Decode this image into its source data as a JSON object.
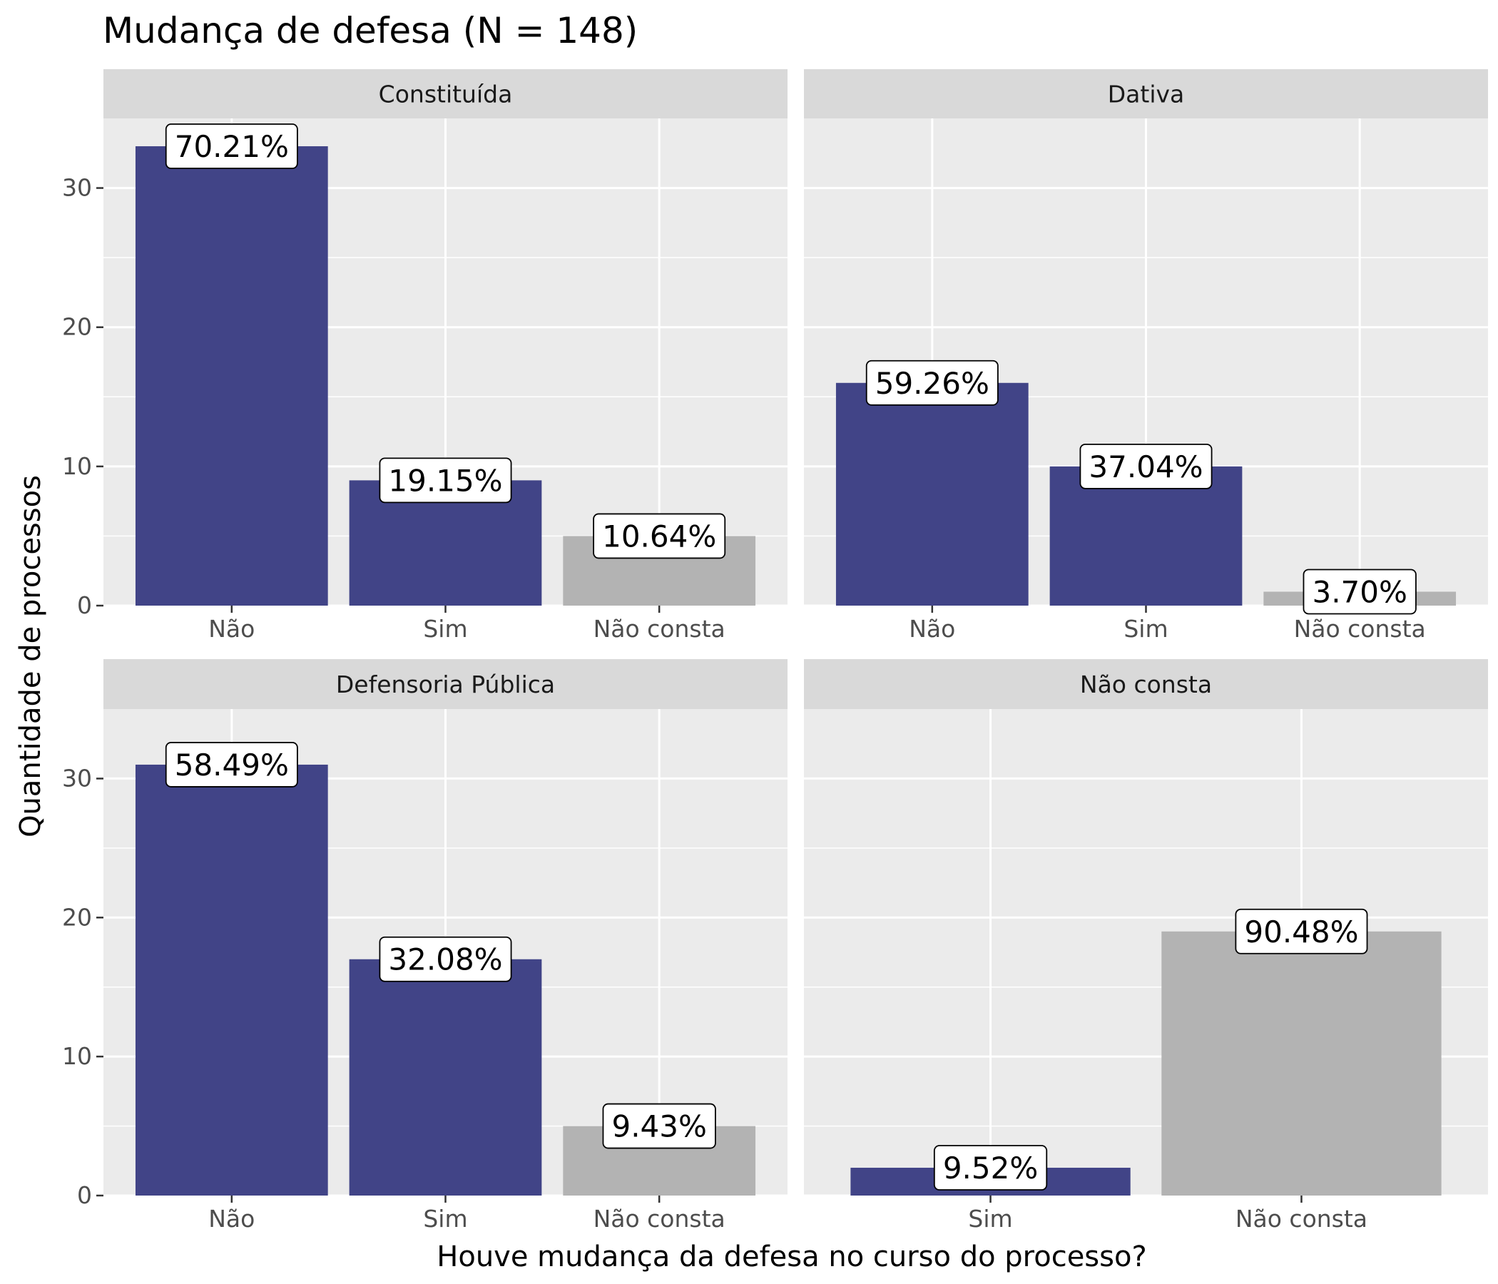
{
  "chart_data": {
    "type": "bar",
    "title": "Mudança de defesa (N = 148)",
    "xlabel": "Houve mudança da defesa no curso do processo?",
    "ylabel": "Quantidade de processos",
    "ylim": [
      0,
      35
    ],
    "yticks": [
      0,
      10,
      20,
      30
    ],
    "grid": true,
    "colors": {
      "answered": "#414487",
      "not_reported": "#b3b3b3",
      "panel_bg": "#ebebeb",
      "strip_bg": "#d9d9d9",
      "grid": "#ffffff"
    },
    "panels": [
      {
        "name": "Constituída",
        "categories": [
          "Não",
          "Sim",
          "Não consta"
        ],
        "values": [
          33,
          9,
          5
        ],
        "labels": [
          "70.21%",
          "19.15%",
          "10.64%"
        ],
        "fill": [
          "answered",
          "answered",
          "not_reported"
        ]
      },
      {
        "name": "Dativa",
        "categories": [
          "Não",
          "Sim",
          "Não consta"
        ],
        "values": [
          16,
          10,
          1
        ],
        "labels": [
          "59.26%",
          "37.04%",
          "3.70%"
        ],
        "fill": [
          "answered",
          "answered",
          "not_reported"
        ]
      },
      {
        "name": "Defensoria Pública",
        "categories": [
          "Não",
          "Sim",
          "Não consta"
        ],
        "values": [
          31,
          17,
          5
        ],
        "labels": [
          "58.49%",
          "32.08%",
          "9.43%"
        ],
        "fill": [
          "answered",
          "answered",
          "not_reported"
        ]
      },
      {
        "name": "Não consta",
        "categories": [
          "Sim",
          "Não consta"
        ],
        "values": [
          2,
          19
        ],
        "labels": [
          "9.52%",
          "90.48%"
        ],
        "fill": [
          "answered",
          "not_reported"
        ]
      }
    ]
  }
}
